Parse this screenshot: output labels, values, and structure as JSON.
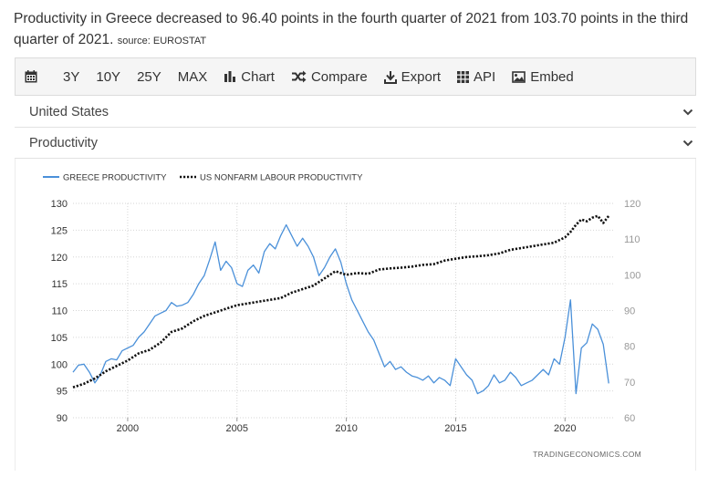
{
  "headline": {
    "text": "Productivity in Greece decreased to 96.40 points in the fourth quarter of 2021 from 103.70 points in the third quarter of 2021.",
    "source": "source: EUROSTAT"
  },
  "toolbar": {
    "items": [
      {
        "label": "",
        "icon": "calendar-icon"
      },
      {
        "label": "3Y"
      },
      {
        "label": "10Y"
      },
      {
        "label": "25Y"
      },
      {
        "label": "MAX"
      },
      {
        "label": "Chart",
        "icon": "bar-chart-icon"
      },
      {
        "label": "Compare",
        "icon": "shuffle-icon"
      },
      {
        "label": "Export",
        "icon": "download-icon"
      },
      {
        "label": "API",
        "icon": "grid-icon"
      },
      {
        "label": "Embed",
        "icon": "image-icon"
      }
    ]
  },
  "selectors": {
    "country": "United States",
    "indicator": "Productivity"
  },
  "watermark": "TRADINGECONOMICS.COM",
  "colors": {
    "greece": "#4a90d9",
    "us": "#111111",
    "grid": "#d6d6d6"
  },
  "chart_data": {
    "type": "line",
    "legend_placement": "top-left",
    "grid": true,
    "x_ticks": [
      "2000",
      "2005",
      "2010",
      "2015",
      "2020"
    ],
    "x_range": [
      1997.5,
      2022.2
    ],
    "y_left": {
      "ticks": [
        90,
        95,
        100,
        105,
        110,
        115,
        120,
        125,
        130
      ],
      "range": [
        90,
        130
      ]
    },
    "y_right": {
      "ticks": [
        60,
        70,
        80,
        90,
        100,
        110,
        120
      ],
      "range": [
        60,
        120
      ]
    },
    "series": [
      {
        "name": "GREECE PRODUCTIVITY",
        "axis": "left",
        "style": "solid",
        "x": [
          1997.5,
          1997.75,
          1998.0,
          1998.25,
          1998.5,
          1998.75,
          1999.0,
          1999.25,
          1999.5,
          1999.75,
          2000.0,
          2000.25,
          2000.5,
          2000.75,
          2001.0,
          2001.25,
          2001.5,
          2001.75,
          2002.0,
          2002.25,
          2002.5,
          2002.75,
          2003.0,
          2003.25,
          2003.5,
          2003.75,
          2004.0,
          2004.25,
          2004.5,
          2004.75,
          2005.0,
          2005.25,
          2005.5,
          2005.75,
          2006.0,
          2006.25,
          2006.5,
          2006.75,
          2007.0,
          2007.25,
          2007.5,
          2007.75,
          2008.0,
          2008.25,
          2008.5,
          2008.75,
          2009.0,
          2009.25,
          2009.5,
          2009.75,
          2010.0,
          2010.25,
          2010.5,
          2010.75,
          2011.0,
          2011.25,
          2011.5,
          2011.75,
          2012.0,
          2012.25,
          2012.5,
          2012.75,
          2013.0,
          2013.25,
          2013.5,
          2013.75,
          2014.0,
          2014.25,
          2014.5,
          2014.75,
          2015.0,
          2015.25,
          2015.5,
          2015.75,
          2016.0,
          2016.25,
          2016.5,
          2016.75,
          2017.0,
          2017.25,
          2017.5,
          2017.75,
          2018.0,
          2018.25,
          2018.5,
          2018.75,
          2019.0,
          2019.25,
          2019.5,
          2019.75,
          2020.0,
          2020.25,
          2020.5,
          2020.75,
          2021.0,
          2021.25,
          2021.5,
          2021.75,
          2022.0
        ],
        "values": [
          98.5,
          99.8,
          100.0,
          98.5,
          96.5,
          98.0,
          100.5,
          101.0,
          100.8,
          102.5,
          103.0,
          103.5,
          105.0,
          106.0,
          107.5,
          109.0,
          109.5,
          110.0,
          111.5,
          110.8,
          111.0,
          111.5,
          113.0,
          115.0,
          116.5,
          119.5,
          122.8,
          117.5,
          119.2,
          118.0,
          115.0,
          114.5,
          117.5,
          118.5,
          117.0,
          121.0,
          122.5,
          121.5,
          124.0,
          126.0,
          124.0,
          122.0,
          123.5,
          122.0,
          120.0,
          116.5,
          118.0,
          120.0,
          121.5,
          119.0,
          115.0,
          112.0,
          110.0,
          108.0,
          106.0,
          104.5,
          102.0,
          99.5,
          100.5,
          99.0,
          99.5,
          98.5,
          97.8,
          97.5,
          97.0,
          97.8,
          96.5,
          97.5,
          97.0,
          96.0,
          101.0,
          99.5,
          98.0,
          97.0,
          94.5,
          95.0,
          96.0,
          98.0,
          96.5,
          97.0,
          98.5,
          97.5,
          96.0,
          96.5,
          97.0,
          98.0,
          99.0,
          98.0,
          101.0,
          100.0,
          105.0,
          112.0,
          94.5,
          103.0,
          104.0,
          107.5,
          106.5,
          103.7,
          96.4
        ]
      },
      {
        "name": "US NONFARM LABOUR PRODUCTIVITY",
        "axis": "right",
        "style": "dotted",
        "x": [
          1997.5,
          1998.0,
          1998.5,
          1999.0,
          1999.5,
          2000.0,
          2000.5,
          2001.0,
          2001.5,
          2002.0,
          2002.5,
          2003.0,
          2003.5,
          2004.0,
          2004.5,
          2005.0,
          2005.5,
          2006.0,
          2006.5,
          2007.0,
          2007.5,
          2008.0,
          2008.5,
          2009.0,
          2009.5,
          2010.0,
          2010.5,
          2011.0,
          2011.5,
          2012.0,
          2012.5,
          2013.0,
          2013.5,
          2014.0,
          2014.5,
          2015.0,
          2015.5,
          2016.0,
          2016.5,
          2017.0,
          2017.5,
          2018.0,
          2018.5,
          2019.0,
          2019.5,
          2020.0,
          2020.25,
          2020.5,
          2020.75,
          2021.0,
          2021.25,
          2021.5,
          2021.75,
          2022.0
        ],
        "values": [
          68.5,
          69.5,
          71.0,
          73.0,
          74.5,
          76.0,
          78.0,
          79.0,
          81.0,
          84.0,
          85.0,
          87.0,
          88.5,
          89.5,
          90.5,
          91.5,
          92.0,
          92.5,
          93.0,
          93.5,
          95.0,
          96.0,
          97.0,
          99.0,
          101.0,
          100.0,
          100.5,
          100.3,
          101.5,
          101.8,
          102.0,
          102.3,
          102.8,
          103.0,
          104.0,
          104.5,
          105.0,
          105.2,
          105.5,
          106.0,
          107.0,
          107.5,
          108.0,
          108.5,
          109.0,
          110.5,
          112.0,
          114.0,
          115.5,
          115.0,
          116.0,
          116.5,
          114.5,
          116.5
        ]
      }
    ]
  }
}
